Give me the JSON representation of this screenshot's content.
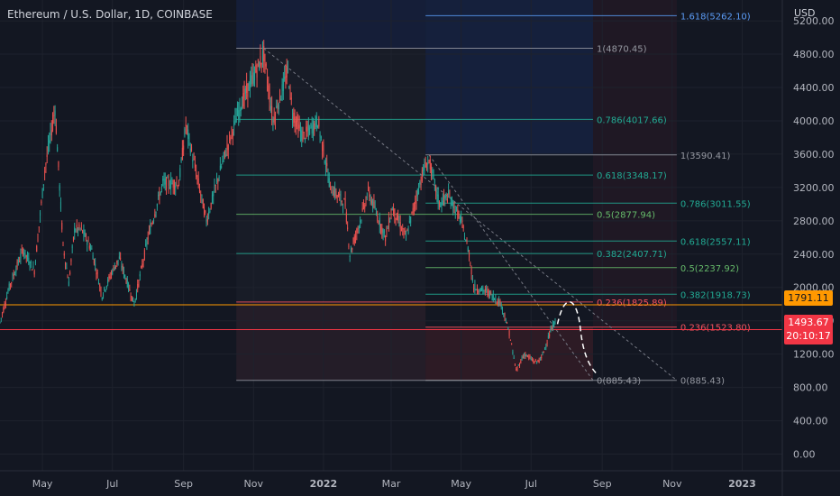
{
  "header": {
    "title": "Ethereum / U.S. Dollar, 1D, COINBASE",
    "currency": "USD"
  },
  "price_tags": {
    "orange_value": "1791.11",
    "current_price": "1493.67",
    "countdown": "20:10:17"
  },
  "colors": {
    "background": "#131722",
    "up": "#26a69a",
    "down": "#ef5350",
    "orange": "#ff9800",
    "red_tag": "#f23645",
    "axis_text": "#b2b5be"
  },
  "chart_data": {
    "type": "candlestick",
    "title": "Ethereum / U.S. Dollar, 1D, COINBASE",
    "y_axis": {
      "unit": "USD",
      "ticks": [
        0,
        400,
        800,
        1200,
        1600,
        2000,
        2400,
        2800,
        3200,
        3600,
        4000,
        4400,
        4800,
        5200
      ],
      "tick_labels": [
        "0.00",
        "400.00",
        "800.00",
        "1200.00",
        "1600.00",
        "2000.00",
        "2400.00",
        "2800.00",
        "3200.00",
        "3600.00",
        "4000.00",
        "4400.00",
        "4800.00",
        "5200.00"
      ],
      "range": [
        -200,
        5450
      ]
    },
    "x_axis": {
      "range": [
        "2021-03-25",
        "2023-02-05"
      ],
      "ticks": [
        {
          "date": "2021-05-01",
          "label": "May"
        },
        {
          "date": "2021-07-01",
          "label": "Jul"
        },
        {
          "date": "2021-09-01",
          "label": "Sep"
        },
        {
          "date": "2021-11-01",
          "label": "Nov"
        },
        {
          "date": "2022-01-01",
          "label": "2022"
        },
        {
          "date": "2022-03-01",
          "label": "Mar"
        },
        {
          "date": "2022-05-01",
          "label": "May"
        },
        {
          "date": "2022-07-01",
          "label": "Jul"
        },
        {
          "date": "2022-09-01",
          "label": "Sep"
        },
        {
          "date": "2022-11-01",
          "label": "Nov"
        },
        {
          "date": "2023-01-01",
          "label": "2023"
        }
      ]
    },
    "price_path": [
      [
        "2021-03-25",
        1580
      ],
      [
        "2021-04-02",
        2000
      ],
      [
        "2021-04-14",
        2450
      ],
      [
        "2021-04-24",
        2200
      ],
      [
        "2021-05-03",
        3400
      ],
      [
        "2021-05-12",
        4150
      ],
      [
        "2021-05-19",
        2500
      ],
      [
        "2021-05-24",
        2050
      ],
      [
        "2021-05-29",
        2700
      ],
      [
        "2021-06-04",
        2700
      ],
      [
        "2021-06-13",
        2450
      ],
      [
        "2021-06-22",
        1900
      ],
      [
        "2021-07-01",
        2200
      ],
      [
        "2021-07-07",
        2350
      ],
      [
        "2021-07-20",
        1800
      ],
      [
        "2021-08-01",
        2600
      ],
      [
        "2021-08-14",
        3250
      ],
      [
        "2021-08-28",
        3250
      ],
      [
        "2021-09-03",
        3950
      ],
      [
        "2021-09-21",
        2800
      ],
      [
        "2021-10-01",
        3300
      ],
      [
        "2021-10-06",
        3550
      ],
      [
        "2021-10-21",
        4200
      ],
      [
        "2021-11-10",
        4800
      ],
      [
        "2021-11-18",
        4000
      ],
      [
        "2021-12-01",
        4600
      ],
      [
        "2021-12-05",
        4100
      ],
      [
        "2021-12-14",
        3800
      ],
      [
        "2021-12-27",
        4000
      ],
      [
        "2022-01-07",
        3200
      ],
      [
        "2022-01-20",
        3000
      ],
      [
        "2022-01-24",
        2400
      ],
      [
        "2022-02-02",
        2800
      ],
      [
        "2022-02-09",
        3150
      ],
      [
        "2022-02-24",
        2600
      ],
      [
        "2022-03-02",
        2950
      ],
      [
        "2022-03-14",
        2600
      ],
      [
        "2022-03-29",
        3400
      ],
      [
        "2022-04-03",
        3520
      ],
      [
        "2022-04-12",
        3000
      ],
      [
        "2022-04-20",
        3100
      ],
      [
        "2022-05-01",
        2800
      ],
      [
        "2022-05-08",
        2400
      ],
      [
        "2022-05-12",
        2000
      ],
      [
        "2022-05-24",
        1950
      ],
      [
        "2022-06-05",
        1800
      ],
      [
        "2022-06-12",
        1450
      ],
      [
        "2022-06-18",
        1000
      ],
      [
        "2022-06-25",
        1200
      ],
      [
        "2022-07-05",
        1100
      ],
      [
        "2022-07-10",
        1150
      ],
      [
        "2022-07-16",
        1400
      ],
      [
        "2022-07-22",
        1600
      ]
    ],
    "fib_levels": [
      {
        "label": "1.618(5262.10)",
        "price": 5262.1,
        "color": "#5b9cf6"
      },
      {
        "label": "1(4870.45)",
        "price": 4870.45,
        "color": "#9598a1"
      },
      {
        "label": "0.786(4017.66)",
        "price": 4017.66,
        "color": "#22ab94"
      },
      {
        "label": "1(3590.41)",
        "price": 3590.41,
        "color": "#9598a1"
      },
      {
        "label": "0.618(3348.17)",
        "price": 3348.17,
        "color": "#22ab94"
      },
      {
        "label": "0.786(3011.55)",
        "price": 3011.55,
        "color": "#22ab94"
      },
      {
        "label": "0.5(2877.94)",
        "price": 2877.94,
        "color": "#66bb6a"
      },
      {
        "label": "0.618(2557.11)",
        "price": 2557.11,
        "color": "#22ab94"
      },
      {
        "label": "0.382(2407.71)",
        "price": 2407.71,
        "color": "#22ab94"
      },
      {
        "label": "0.5(2237.92)",
        "price": 2237.92,
        "color": "#66bb6a"
      },
      {
        "label": "0.382(1918.73)",
        "price": 1918.73,
        "color": "#22ab94"
      },
      {
        "label": "0.236(1825.89)",
        "price": 1825.89,
        "color": "#f7525f"
      },
      {
        "label": "0.236(1523.80)",
        "price": 1523.8,
        "color": "#f7525f"
      },
      {
        "label": "0(885.43)",
        "price": 885.43,
        "color": "#9598a1"
      },
      {
        "label": "0(885.43)",
        "price": 885.43,
        "color": "#9598a1"
      }
    ],
    "horizontal_lines": [
      {
        "price": 1791.11,
        "color": "#ff9800"
      },
      {
        "price": 1493.67,
        "color": "#f23645"
      }
    ],
    "legend": "none",
    "grid": true
  }
}
